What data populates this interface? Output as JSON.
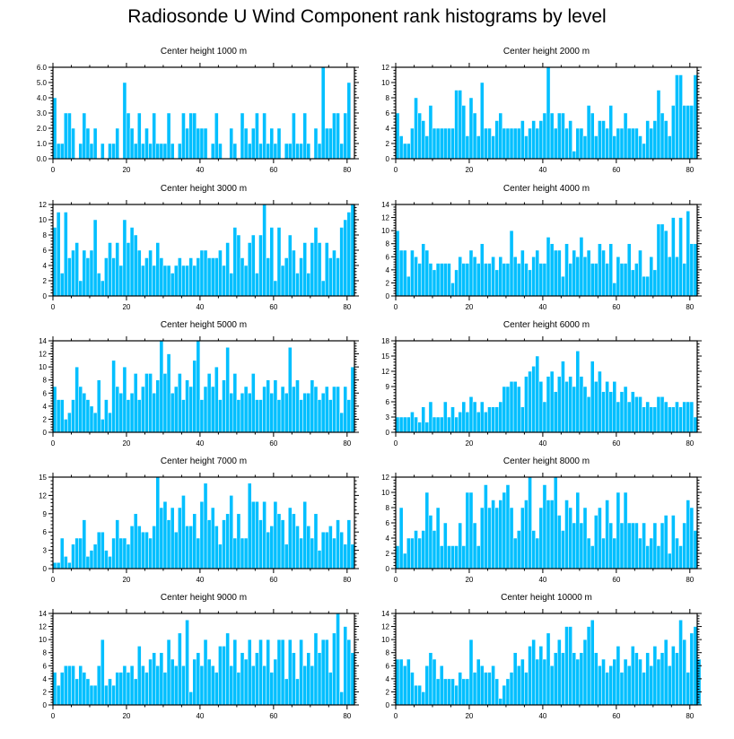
{
  "title": "Radiosonde U Wind Component rank histograms by level",
  "chart_data": [
    {
      "type": "bar",
      "title": "Center height 1000 m",
      "xlim": [
        0,
        82
      ],
      "ylim": [
        0,
        6
      ],
      "yticks": [
        0,
        1,
        2,
        3,
        4,
        5,
        6
      ],
      "ytick_labels": [
        "0.0",
        "1.0",
        "2.0",
        "3.0",
        "4.0",
        "5.0",
        "6.0"
      ],
      "xticks": [
        0,
        20,
        40,
        60,
        80
      ],
      "values": [
        4,
        1,
        1,
        3,
        3,
        2,
        0,
        1,
        3,
        2,
        1,
        2,
        0,
        1,
        0,
        1,
        1,
        2,
        0,
        5,
        3,
        2,
        1,
        3,
        1,
        2,
        1,
        3,
        1,
        1,
        1,
        3,
        1,
        0,
        1,
        3,
        2,
        3,
        3,
        2,
        2,
        2,
        0,
        1,
        3,
        1,
        0,
        0,
        2,
        1,
        0,
        3,
        2,
        1,
        2,
        3,
        1,
        3,
        1,
        2,
        1,
        2,
        0,
        1,
        1,
        3,
        1,
        1,
        3,
        1,
        0,
        2,
        1,
        6,
        2,
        2,
        3,
        3,
        1,
        3,
        5
      ]
    },
    {
      "type": "bar",
      "title": "Center height 2000 m",
      "xlim": [
        0,
        82
      ],
      "ylim": [
        0,
        12
      ],
      "yticks": [
        0,
        2,
        4,
        6,
        8,
        10,
        12
      ],
      "ytick_labels": [
        "0",
        "2",
        "4",
        "6",
        "8",
        "10",
        "12"
      ],
      "xticks": [
        0,
        20,
        40,
        60,
        80
      ],
      "values": [
        6,
        3,
        2,
        2,
        4,
        8,
        6,
        5,
        3,
        7,
        4,
        4,
        4,
        4,
        4,
        4,
        9,
        9,
        7,
        3,
        8,
        6,
        3,
        10,
        4,
        4,
        3,
        5,
        6,
        4,
        4,
        4,
        4,
        4,
        5,
        3,
        4,
        5,
        4,
        5,
        6,
        12,
        6,
        4,
        6,
        6,
        4,
        5,
        1,
        4,
        4,
        3,
        7,
        6,
        3,
        5,
        5,
        4,
        7,
        3,
        4,
        4,
        6,
        4,
        4,
        4,
        3,
        2,
        5,
        4,
        5,
        9,
        6,
        5,
        3,
        7,
        11,
        11,
        7,
        7,
        7,
        11
      ]
    },
    {
      "type": "bar",
      "title": "Center height 3000 m",
      "xlim": [
        0,
        82
      ],
      "ylim": [
        0,
        12
      ],
      "yticks": [
        0,
        2,
        4,
        6,
        8,
        10,
        12
      ],
      "ytick_labels": [
        "0",
        "2",
        "4",
        "6",
        "8",
        "10",
        "12"
      ],
      "xticks": [
        0,
        20,
        40,
        60,
        80
      ],
      "values": [
        9,
        11,
        3,
        11,
        5,
        6,
        7,
        2,
        6,
        5,
        6,
        10,
        3,
        2,
        5,
        7,
        5,
        7,
        4,
        10,
        7,
        9,
        8,
        6,
        4,
        5,
        6,
        4,
        7,
        5,
        4,
        4,
        3,
        4,
        5,
        4,
        4,
        5,
        4,
        5,
        6,
        6,
        5,
        5,
        5,
        6,
        4,
        7,
        3,
        9,
        8,
        5,
        4,
        7,
        8,
        3,
        8,
        12,
        5,
        9,
        2,
        9,
        4,
        5,
        8,
        6,
        3,
        5,
        7,
        3,
        7,
        9,
        7,
        2,
        7,
        5,
        6,
        5,
        9,
        10,
        11,
        12
      ]
    },
    {
      "type": "bar",
      "title": "Center height 4000 m",
      "xlim": [
        0,
        82
      ],
      "ylim": [
        0,
        14
      ],
      "yticks": [
        0,
        2,
        4,
        6,
        8,
        10,
        12,
        14
      ],
      "ytick_labels": [
        "0",
        "2",
        "4",
        "6",
        "8",
        "10",
        "12",
        "14"
      ],
      "xticks": [
        0,
        20,
        40,
        60,
        80
      ],
      "values": [
        10,
        7,
        7,
        3,
        7,
        6,
        5,
        8,
        7,
        5,
        4,
        5,
        5,
        5,
        5,
        2,
        4,
        6,
        5,
        5,
        7,
        6,
        5,
        8,
        5,
        5,
        6,
        4,
        6,
        5,
        5,
        10,
        6,
        5,
        7,
        5,
        4,
        6,
        7,
        5,
        5,
        9,
        8,
        7,
        7,
        3,
        8,
        5,
        7,
        6,
        9,
        6,
        7,
        5,
        5,
        8,
        7,
        5,
        8,
        2,
        6,
        5,
        5,
        8,
        4,
        5,
        7,
        3,
        3,
        6,
        4,
        11,
        11,
        10,
        6,
        12,
        6,
        12,
        5,
        13,
        8,
        8
      ]
    },
    {
      "type": "bar",
      "title": "Center height 5000 m",
      "xlim": [
        0,
        82
      ],
      "ylim": [
        0,
        14
      ],
      "yticks": [
        0,
        2,
        4,
        6,
        8,
        10,
        12,
        14
      ],
      "ytick_labels": [
        "0",
        "2",
        "4",
        "6",
        "8",
        "10",
        "12",
        "14"
      ],
      "xticks": [
        0,
        20,
        40,
        60,
        80
      ],
      "values": [
        7,
        5,
        5,
        2,
        3,
        5,
        10,
        7,
        6,
        5,
        4,
        3,
        8,
        2,
        5,
        3,
        11,
        7,
        6,
        10,
        5,
        6,
        9,
        5,
        7,
        9,
        9,
        6,
        8,
        14,
        9,
        12,
        6,
        7,
        9,
        5,
        8,
        7,
        11,
        14,
        5,
        7,
        9,
        7,
        10,
        5,
        8,
        13,
        6,
        9,
        5,
        6,
        7,
        6,
        9,
        5,
        5,
        7,
        8,
        6,
        8,
        5,
        7,
        6,
        13,
        7,
        8,
        5,
        6,
        6,
        8,
        7,
        5,
        6,
        7,
        5,
        7,
        7,
        3,
        7,
        5,
        10
      ]
    },
    {
      "type": "bar",
      "title": "Center height 6000 m",
      "xlim": [
        0,
        82
      ],
      "ylim": [
        0,
        18
      ],
      "yticks": [
        0,
        3,
        6,
        9,
        12,
        15,
        18
      ],
      "ytick_labels": [
        "0",
        "3",
        "6",
        "9",
        "12",
        "15",
        "18"
      ],
      "xticks": [
        0,
        20,
        40,
        60,
        80
      ],
      "values": [
        3,
        3,
        3,
        3,
        4,
        3,
        2,
        5,
        2,
        6,
        3,
        3,
        3,
        6,
        3,
        5,
        3,
        4,
        6,
        4,
        7,
        6,
        4,
        6,
        4,
        5,
        5,
        5,
        6,
        9,
        9,
        10,
        10,
        9,
        5,
        11,
        12,
        13,
        15,
        10,
        6,
        11,
        12,
        8,
        11,
        14,
        10,
        11,
        9,
        16,
        11,
        9,
        7,
        14,
        10,
        12,
        8,
        10,
        8,
        10,
        6,
        8,
        9,
        6,
        8,
        7,
        7,
        5,
        6,
        5,
        5,
        7,
        7,
        6,
        5,
        5,
        6,
        5,
        6,
        6,
        6,
        3
      ]
    },
    {
      "type": "bar",
      "title": "Center height 7000 m",
      "xlim": [
        0,
        82
      ],
      "ylim": [
        0,
        15
      ],
      "yticks": [
        0,
        3,
        6,
        9,
        12,
        15
      ],
      "ytick_labels": [
        "0",
        "3",
        "6",
        "9",
        "12",
        "15"
      ],
      "xticks": [
        0,
        20,
        40,
        60,
        80
      ],
      "values": [
        1,
        1,
        5,
        2,
        1,
        4,
        5,
        5,
        8,
        2,
        3,
        4,
        6,
        6,
        3,
        2,
        5,
        8,
        5,
        5,
        4,
        7,
        9,
        7,
        6,
        6,
        5,
        7,
        15,
        10,
        11,
        8,
        10,
        6,
        10,
        12,
        7,
        7,
        9,
        5,
        11,
        14,
        8,
        10,
        7,
        4,
        8,
        9,
        12,
        5,
        9,
        5,
        5,
        14,
        11,
        11,
        8,
        11,
        6,
        7,
        11,
        9,
        8,
        4,
        10,
        9,
        7,
        5,
        11,
        7,
        5,
        9,
        3,
        6,
        6,
        7,
        5,
        8,
        6,
        4,
        8,
        4
      ]
    },
    {
      "type": "bar",
      "title": "Center height 8000 m",
      "xlim": [
        0,
        82
      ],
      "ylim": [
        0,
        12
      ],
      "yticks": [
        0,
        2,
        4,
        6,
        8,
        10,
        12
      ],
      "ytick_labels": [
        "0",
        "2",
        "4",
        "6",
        "8",
        "10",
        "12"
      ],
      "xticks": [
        0,
        20,
        40,
        60,
        80
      ],
      "values": [
        3,
        8,
        2,
        4,
        4,
        5,
        4,
        5,
        10,
        7,
        5,
        8,
        3,
        6,
        3,
        3,
        3,
        6,
        3,
        10,
        10,
        6,
        3,
        8,
        11,
        8,
        9,
        8,
        9,
        10,
        11,
        8,
        4,
        5,
        8,
        9,
        12,
        5,
        4,
        8,
        11,
        9,
        9,
        12,
        7,
        5,
        9,
        8,
        6,
        10,
        6,
        8,
        4,
        3,
        7,
        8,
        4,
        9,
        6,
        4,
        10,
        6,
        10,
        6,
        6,
        6,
        4,
        6,
        3,
        4,
        6,
        3,
        6,
        7,
        2,
        7,
        4,
        3,
        6,
        9,
        8,
        5
      ]
    },
    {
      "type": "bar",
      "title": "Center height 9000 m",
      "xlim": [
        0,
        82
      ],
      "ylim": [
        0,
        14
      ],
      "yticks": [
        0,
        2,
        4,
        6,
        8,
        10,
        12,
        14
      ],
      "ytick_labels": [
        "0",
        "2",
        "4",
        "6",
        "8",
        "10",
        "12",
        "14"
      ],
      "xticks": [
        0,
        20,
        40,
        60,
        80
      ],
      "values": [
        5,
        3,
        5,
        6,
        6,
        6,
        4,
        6,
        5,
        4,
        3,
        3,
        6,
        10,
        3,
        4,
        3,
        5,
        5,
        6,
        5,
        6,
        4,
        9,
        6,
        5,
        7,
        8,
        6,
        8,
        5,
        10,
        7,
        6,
        11,
        6,
        13,
        2,
        7,
        8,
        6,
        10,
        7,
        6,
        5,
        9,
        9,
        11,
        6,
        10,
        5,
        8,
        7,
        10,
        6,
        8,
        10,
        6,
        10,
        5,
        7,
        10,
        10,
        4,
        10,
        8,
        4,
        10,
        6,
        8,
        6,
        11,
        8,
        10,
        10,
        5,
        11,
        14,
        2,
        12,
        10,
        8
      ]
    },
    {
      "type": "bar",
      "title": "Center height 10000 m",
      "xlim": [
        0,
        82
      ],
      "ylim": [
        0,
        14
      ],
      "yticks": [
        0,
        2,
        4,
        6,
        8,
        10,
        12,
        14
      ],
      "ytick_labels": [
        "0",
        "2",
        "4",
        "6",
        "8",
        "10",
        "12",
        "14"
      ],
      "xticks": [
        0,
        20,
        40,
        60,
        80
      ],
      "values": [
        7,
        7,
        6,
        7,
        5,
        3,
        3,
        2,
        6,
        8,
        7,
        4,
        6,
        4,
        4,
        4,
        3,
        5,
        4,
        4,
        10,
        5,
        7,
        6,
        5,
        5,
        6,
        4,
        1,
        3,
        4,
        5,
        8,
        6,
        7,
        5,
        9,
        10,
        7,
        9,
        7,
        11,
        6,
        8,
        10,
        8,
        12,
        12,
        8,
        7,
        8,
        10,
        12,
        13,
        8,
        6,
        7,
        5,
        6,
        7,
        9,
        5,
        7,
        6,
        9,
        8,
        7,
        5,
        8,
        6,
        9,
        7,
        8,
        10,
        6,
        9,
        8,
        13,
        10,
        5,
        11,
        12,
        7
      ]
    }
  ]
}
